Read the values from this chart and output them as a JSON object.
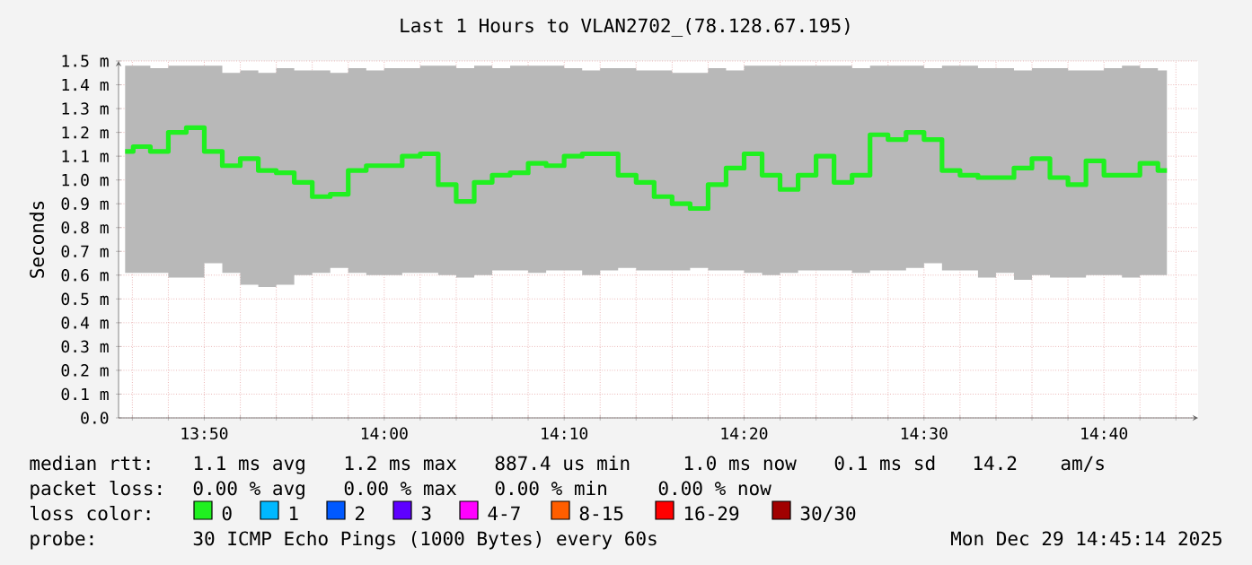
{
  "chart_data": {
    "type": "step",
    "title": "Last 1 Hours to VLAN2702_(78.128.67.195)",
    "ylabel": "Seconds",
    "legend_title": "loss color:",
    "legend": "bottom",
    "grid": true,
    "marker": "none",
    "x": [
      13.76,
      13.775,
      13.7917,
      13.8083,
      13.825,
      13.8417,
      13.8583,
      13.875,
      13.8917,
      13.9083,
      13.925,
      13.9417,
      13.9583,
      13.975,
      13.9917,
      14.0083,
      14.025,
      14.0417,
      14.0583,
      14.075,
      14.0917,
      14.1083,
      14.125,
      14.1417,
      14.1583,
      14.175,
      14.1917,
      14.2083,
      14.225,
      14.2417,
      14.2583,
      14.275,
      14.2917,
      14.3083,
      14.325,
      14.3417,
      14.3583,
      14.375,
      14.3917,
      14.4083,
      14.425,
      14.4417,
      14.4583,
      14.475,
      14.4917,
      14.5083,
      14.525,
      14.5417,
      14.5583,
      14.575,
      14.5917,
      14.6083,
      14.625,
      14.6417,
      14.6583,
      14.675,
      14.6917,
      14.7083,
      14.725
    ],
    "xlim": [
      13.7539,
      14.7539
    ],
    "xticks": [
      {
        "value": 13.7667,
        "label": null
      },
      {
        "value": 13.8,
        "label": null
      },
      {
        "value": 13.8333,
        "label": "13:50"
      },
      {
        "value": 13.8667,
        "label": null
      },
      {
        "value": 13.9,
        "label": null
      },
      {
        "value": 13.9333,
        "label": null
      },
      {
        "value": 13.9667,
        "label": null
      },
      {
        "value": 14,
        "label": "14:00"
      },
      {
        "value": 14.0333,
        "label": null
      },
      {
        "value": 14.0667,
        "label": null
      },
      {
        "value": 14.1,
        "label": null
      },
      {
        "value": 14.1333,
        "label": null
      },
      {
        "value": 14.1667,
        "label": "14:10"
      },
      {
        "value": 14.2,
        "label": null
      },
      {
        "value": 14.2333,
        "label": null
      },
      {
        "value": 14.2667,
        "label": null
      },
      {
        "value": 14.3,
        "label": null
      },
      {
        "value": 14.3333,
        "label": "14:20"
      },
      {
        "value": 14.3667,
        "label": null
      },
      {
        "value": 14.4,
        "label": null
      },
      {
        "value": 14.4333,
        "label": null
      },
      {
        "value": 14.4667,
        "label": null
      },
      {
        "value": 14.5,
        "label": "14:30"
      },
      {
        "value": 14.5333,
        "label": null
      },
      {
        "value": 14.5667,
        "label": null
      },
      {
        "value": 14.6,
        "label": null
      },
      {
        "value": 14.6333,
        "label": null
      },
      {
        "value": 14.6667,
        "label": "14:40"
      },
      {
        "value": 14.7,
        "label": null
      },
      {
        "value": 14.7333,
        "label": null
      }
    ],
    "ylim": [
      0,
      1.5
    ],
    "yticks": [
      {
        "value": 0,
        "label": "0.0"
      },
      {
        "value": 0.1,
        "label": "0.1 m"
      },
      {
        "value": 0.2,
        "label": "0.2 m"
      },
      {
        "value": 0.3,
        "label": "0.3 m"
      },
      {
        "value": 0.4,
        "label": "0.4 m"
      },
      {
        "value": 0.5,
        "label": "0.5 m"
      },
      {
        "value": 0.6,
        "label": "0.6 m"
      },
      {
        "value": 0.7,
        "label": "0.7 m"
      },
      {
        "value": 0.8,
        "label": "0.8 m"
      },
      {
        "value": 0.9,
        "label": "0.9 m"
      },
      {
        "value": 1.0,
        "label": "1.0 m"
      },
      {
        "value": 1.1,
        "label": "1.1 m"
      },
      {
        "value": 1.2,
        "label": "1.2 m"
      },
      {
        "value": 1.3,
        "label": "1.3 m"
      },
      {
        "value": 1.4,
        "label": "1.4 m"
      },
      {
        "value": 1.5,
        "label": "1.5 m"
      }
    ],
    "series": [
      {
        "name": "0",
        "color": "#20f020",
        "values": [
          1.12,
          1.14,
          1.12,
          1.2,
          1.22,
          1.12,
          1.06,
          1.09,
          1.04,
          1.03,
          0.99,
          0.93,
          0.94,
          1.04,
          1.06,
          1.06,
          1.1,
          1.11,
          0.98,
          0.91,
          0.99,
          1.02,
          1.03,
          1.07,
          1.06,
          1.1,
          1.11,
          1.11,
          1.02,
          0.99,
          0.93,
          0.9,
          0.88,
          0.98,
          1.05,
          1.11,
          1.02,
          0.96,
          1.02,
          1.1,
          0.99,
          1.02,
          1.19,
          1.17,
          1.2,
          1.17,
          1.04,
          1.02,
          1.01,
          1.01,
          1.05,
          1.09,
          1.01,
          0.98,
          1.08,
          1.02,
          1.02,
          1.07,
          1.04
        ],
        "lower": [
          0.61,
          0.61,
          0.61,
          0.59,
          0.59,
          0.65,
          0.61,
          0.56,
          0.55,
          0.56,
          0.6,
          0.61,
          0.63,
          0.61,
          0.6,
          0.6,
          0.61,
          0.61,
          0.6,
          0.59,
          0.6,
          0.62,
          0.62,
          0.61,
          0.62,
          0.62,
          0.6,
          0.62,
          0.63,
          0.62,
          0.62,
          0.62,
          0.63,
          0.62,
          0.62,
          0.61,
          0.6,
          0.61,
          0.62,
          0.62,
          0.62,
          0.61,
          0.62,
          0.62,
          0.63,
          0.65,
          0.62,
          0.62,
          0.59,
          0.61,
          0.58,
          0.6,
          0.59,
          0.59,
          0.6,
          0.6,
          0.59,
          0.6,
          0.6
        ],
        "upper": [
          1.48,
          1.48,
          1.47,
          1.48,
          1.48,
          1.48,
          1.45,
          1.46,
          1.45,
          1.47,
          1.46,
          1.46,
          1.45,
          1.47,
          1.46,
          1.47,
          1.47,
          1.48,
          1.48,
          1.47,
          1.48,
          1.47,
          1.48,
          1.48,
          1.48,
          1.47,
          1.46,
          1.47,
          1.47,
          1.46,
          1.46,
          1.45,
          1.45,
          1.47,
          1.46,
          1.48,
          1.48,
          1.48,
          1.48,
          1.48,
          1.48,
          1.47,
          1.48,
          1.48,
          1.48,
          1.47,
          1.48,
          1.48,
          1.47,
          1.47,
          1.46,
          1.47,
          1.47,
          1.46,
          1.46,
          1.47,
          1.48,
          1.47,
          1.46
        ]
      },
      {
        "name": "1",
        "color": "#00b8ff",
        "values": [
          null,
          null,
          null,
          null,
          null,
          null,
          null,
          null,
          null,
          null,
          null,
          null,
          null,
          null,
          null,
          null,
          null,
          null,
          null,
          null,
          null,
          null,
          null,
          null,
          null,
          null,
          null,
          null,
          null,
          null,
          null,
          null,
          null,
          null,
          null,
          null,
          null,
          null,
          null,
          null,
          null,
          null,
          null,
          null,
          null,
          null,
          null,
          null,
          null,
          null,
          null,
          null,
          null,
          null,
          null,
          null,
          null,
          null,
          null
        ]
      },
      {
        "name": "2",
        "color": "#0059ff",
        "values": [
          null,
          null,
          null,
          null,
          null,
          null,
          null,
          null,
          null,
          null,
          null,
          null,
          null,
          null,
          null,
          null,
          null,
          null,
          null,
          null,
          null,
          null,
          null,
          null,
          null,
          null,
          null,
          null,
          null,
          null,
          null,
          null,
          null,
          null,
          null,
          null,
          null,
          null,
          null,
          null,
          null,
          null,
          null,
          null,
          null,
          null,
          null,
          null,
          null,
          null,
          null,
          null,
          null,
          null,
          null,
          null,
          null,
          null,
          null
        ]
      },
      {
        "name": "3",
        "color": "#5e00ff",
        "values": [
          null,
          null,
          null,
          null,
          null,
          null,
          null,
          null,
          null,
          null,
          null,
          null,
          null,
          null,
          null,
          null,
          null,
          null,
          null,
          null,
          null,
          null,
          null,
          null,
          null,
          null,
          null,
          null,
          null,
          null,
          null,
          null,
          null,
          null,
          null,
          null,
          null,
          null,
          null,
          null,
          null,
          null,
          null,
          null,
          null,
          null,
          null,
          null,
          null,
          null,
          null,
          null,
          null,
          null,
          null,
          null,
          null,
          null,
          null
        ]
      },
      {
        "name": "4-7",
        "color": "#ff00ff",
        "values": [
          null,
          null,
          null,
          null,
          null,
          null,
          null,
          null,
          null,
          null,
          null,
          null,
          null,
          null,
          null,
          null,
          null,
          null,
          null,
          null,
          null,
          null,
          null,
          null,
          null,
          null,
          null,
          null,
          null,
          null,
          null,
          null,
          null,
          null,
          null,
          null,
          null,
          null,
          null,
          null,
          null,
          null,
          null,
          null,
          null,
          null,
          null,
          null,
          null,
          null,
          null,
          null,
          null,
          null,
          null,
          null,
          null,
          null,
          null
        ]
      },
      {
        "name": "8-15",
        "color": "#ff5e00",
        "values": [
          null,
          null,
          null,
          null,
          null,
          null,
          null,
          null,
          null,
          null,
          null,
          null,
          null,
          null,
          null,
          null,
          null,
          null,
          null,
          null,
          null,
          null,
          null,
          null,
          null,
          null,
          null,
          null,
          null,
          null,
          null,
          null,
          null,
          null,
          null,
          null,
          null,
          null,
          null,
          null,
          null,
          null,
          null,
          null,
          null,
          null,
          null,
          null,
          null,
          null,
          null,
          null,
          null,
          null,
          null,
          null,
          null,
          null,
          null
        ]
      },
      {
        "name": "16-29",
        "color": "#ff0000",
        "values": [
          null,
          null,
          null,
          null,
          null,
          null,
          null,
          null,
          null,
          null,
          null,
          null,
          null,
          null,
          null,
          null,
          null,
          null,
          null,
          null,
          null,
          null,
          null,
          null,
          null,
          null,
          null,
          null,
          null,
          null,
          null,
          null,
          null,
          null,
          null,
          null,
          null,
          null,
          null,
          null,
          null,
          null,
          null,
          null,
          null,
          null,
          null,
          null,
          null,
          null,
          null,
          null,
          null,
          null,
          null,
          null,
          null,
          null,
          null
        ]
      },
      {
        "name": "30/30",
        "color": "#a10000",
        "values": [
          null,
          null,
          null,
          null,
          null,
          null,
          null,
          null,
          null,
          null,
          null,
          null,
          null,
          null,
          null,
          null,
          null,
          null,
          null,
          null,
          null,
          null,
          null,
          null,
          null,
          null,
          null,
          null,
          null,
          null,
          null,
          null,
          null,
          null,
          null,
          null,
          null,
          null,
          null,
          null,
          null,
          null,
          null,
          null,
          null,
          null,
          null,
          null,
          null,
          null,
          null,
          null,
          null,
          null,
          null,
          null,
          null,
          null,
          null
        ]
      }
    ],
    "annotations": [
      "median rtt:",
      "1.1 ms avg",
      "1.2 ms max",
      "887.4 us min",
      "1.0 ms now",
      "0.1 ms sd",
      "14.2",
      "am/s",
      "packet loss:",
      "0.00 % avg",
      "0.00 % max",
      "0.00 % min",
      "0.00 % now",
      "probe:",
      "30 ICMP Echo Pings (1000 Bytes) every 60s",
      "Mon Dec 29 14:45:14 2025"
    ]
  }
}
